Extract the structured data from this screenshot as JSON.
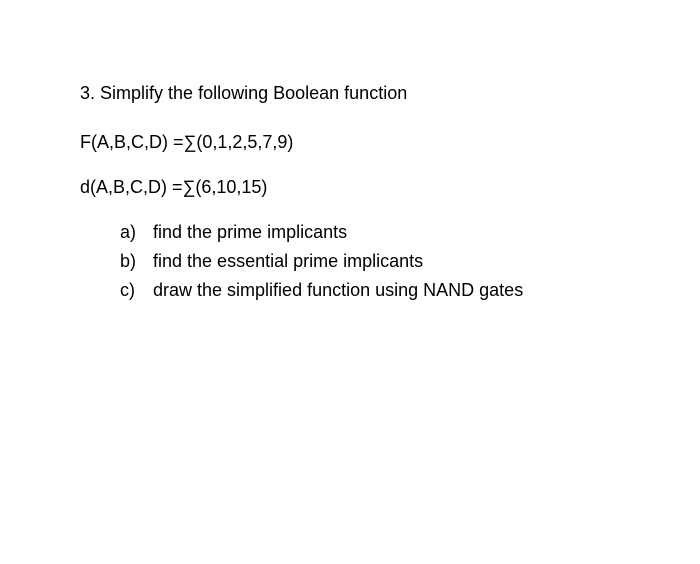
{
  "question": {
    "number": "3.",
    "title": "Simplify the following Boolean function",
    "func_line": "F(A,B,C,D) =∑(0,1,2,5,7,9)",
    "dc_line": "d(A,B,C,D) =∑(6,10,15)",
    "parts": [
      {
        "label": "a)",
        "text": "find the prime implicants"
      },
      {
        "label": "b)",
        "text": "find the essential prime implicants"
      },
      {
        "label": "c)",
        "text": "draw the simplified function using NAND gates"
      }
    ]
  },
  "style": {
    "font_family": "Arial",
    "font_size_pt": 14,
    "text_color": "#000000",
    "background_color": "#ffffff"
  }
}
